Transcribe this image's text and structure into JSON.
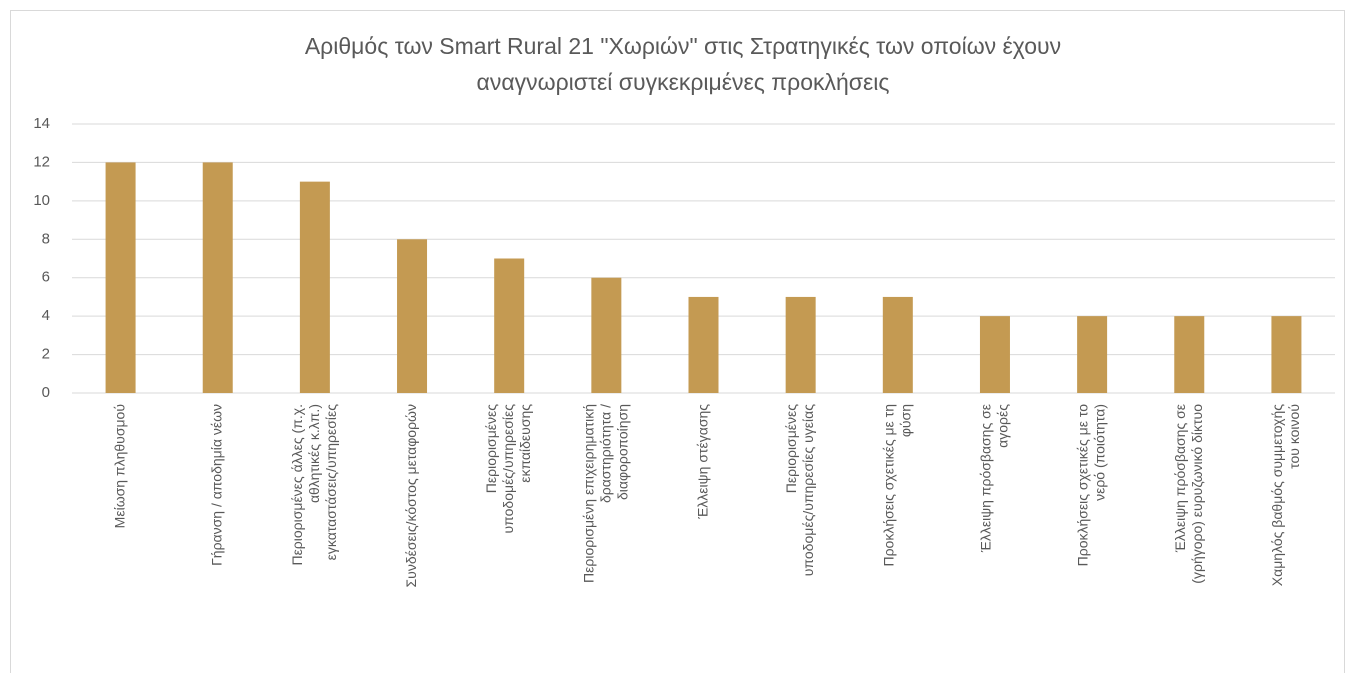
{
  "chart_data": {
    "type": "bar",
    "title": "Αριθμός των Smart Rural 21 \"Χωριών\" στις Στρατηγικές των οποίων έχουν\nαναγνωριστεί συγκεκριμένες προκλήσεις",
    "categories": [
      "Μείωση πληθυσμού",
      "Γήρανση / αποδημία νέων",
      "Περιορισμένες άλλες (π.χ.\nαθλητικές κ.λπ.)\nεγκαταστάσεις/υπηρεσίες",
      "Συνδέσεις/κόστος μεταφορών",
      "Περιορισμένες\nυποδομές/υπηρεσίες\nεκπαίδευσης",
      "Περιορισμένη επιχειρηματική\nδραστηριότητα /\nδιαφοροποίηση",
      "Έλλειψη στέγασης",
      "Περιορισμένες\nυποδομές/υπηρεσίες υγείας",
      "Προκλήσεις σχετικές με τη\nφύση",
      "Έλλειψη πρόσβασης σε\nαγορές",
      "Προκλήσεις σχετικές με το\nνερό (ποιότητα)",
      "Έλλειψη πρόσβασης σε\n(γρήγορο) ευρυζωνικό δίκτυο",
      "Χαμηλός βαθμός συμμετοχής\nτου κοινού"
    ],
    "values": [
      12,
      12,
      11,
      8,
      7,
      6,
      5,
      5,
      5,
      4,
      4,
      4,
      4
    ],
    "color": "#c49a52",
    "ylim": [
      0,
      14
    ],
    "yticks": [
      0,
      2,
      4,
      6,
      8,
      10,
      12,
      14
    ],
    "grid": true
  }
}
